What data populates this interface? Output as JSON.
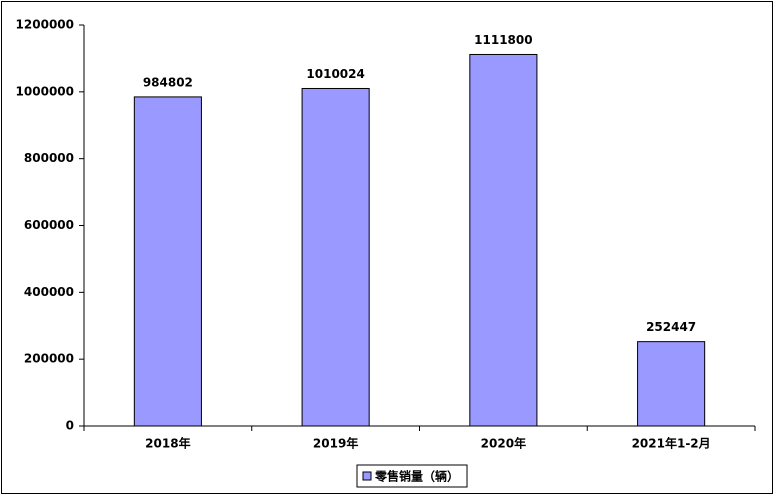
{
  "chart_data": {
    "type": "bar",
    "categories": [
      "2018年",
      "2019年",
      "2020年",
      "2021年1-2月"
    ],
    "series": [
      {
        "name": "零售销量（辆）",
        "color": "#9999ff",
        "values": [
          984802,
          1010024,
          1111800,
          252447
        ]
      }
    ],
    "ylim": [
      0,
      1200000
    ],
    "yticks": [
      0,
      200000,
      400000,
      600000,
      800000,
      1000000,
      1200000
    ],
    "grid": false,
    "legend": "bottom"
  }
}
